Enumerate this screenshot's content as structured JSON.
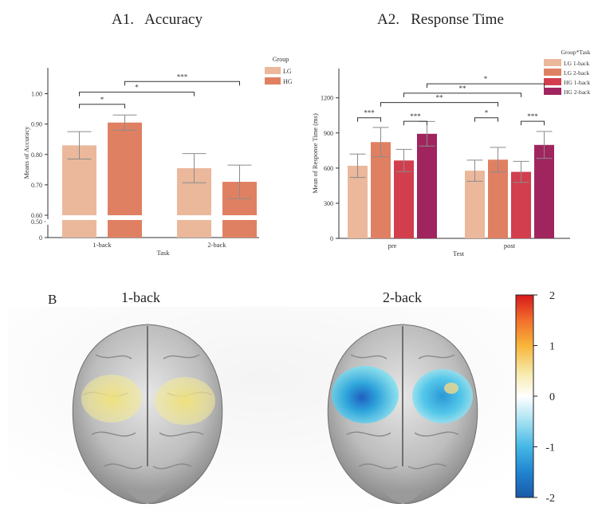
{
  "panel_a1": {
    "title": "A1.   Accuracy",
    "chart_data": {
      "type": "bar",
      "title": "A1.   Accuracy",
      "xlabel": "Task",
      "ylabel": "Means of Accuracy",
      "categories": [
        "1-back",
        "2-back"
      ],
      "series": [
        {
          "name": "LG",
          "color": "#ebb89b",
          "values": [
            0.83,
            0.755
          ],
          "err": [
            0.045,
            0.048
          ]
        },
        {
          "name": "HG",
          "color": "#e08062",
          "values": [
            0.905,
            0.71
          ],
          "err": [
            0.025,
            0.055
          ]
        }
      ],
      "yticks": [
        "0",
        "0.50",
        "0.60",
        "0.70",
        "0.80",
        "0.90",
        "1.00"
      ],
      "ylim": [
        0,
        1.08
      ],
      "legend_title": "Group",
      "legend_position": "top-right",
      "significance": [
        {
          "label": "*",
          "from": "1-back LG",
          "to": "1-back HG"
        },
        {
          "label": "*",
          "from": "1-back LG",
          "to": "2-back LG"
        },
        {
          "label": "***",
          "from": "1-back HG",
          "to": "2-back HG"
        }
      ]
    }
  },
  "panel_a2": {
    "title": "A2.   Response Time",
    "chart_data": {
      "type": "bar",
      "title": "A2.   Response Time",
      "xlabel": "Test",
      "ylabel": "Mean of Response Time (ms)",
      "categories": [
        "pre",
        "post"
      ],
      "series": [
        {
          "name": "LG 1-back",
          "color": "#ebb89b",
          "values": [
            620,
            578
          ],
          "err": [
            100,
            90
          ]
        },
        {
          "name": "LG 2-back",
          "color": "#e08062",
          "values": [
            822,
            672
          ],
          "err": [
            125,
            105
          ]
        },
        {
          "name": "HG 1-back",
          "color": "#d23e4e",
          "values": [
            665,
            568
          ],
          "err": [
            95,
            90
          ]
        },
        {
          "name": "HG 2-back",
          "color": "#a0255f",
          "values": [
            893,
            798
          ],
          "err": [
            105,
            115
          ]
        }
      ],
      "yticks": [
        "0",
        "300",
        "600",
        "900",
        "1200"
      ],
      "ylim": [
        0,
        1450
      ],
      "legend_title": "Group*Task",
      "legend_position": "top-right",
      "significance": [
        {
          "label": "***",
          "from": "pre LG 1-back",
          "to": "pre LG 2-back"
        },
        {
          "label": "***",
          "from": "pre HG 1-back",
          "to": "pre HG 2-back"
        },
        {
          "label": "*",
          "from": "post LG 1-back",
          "to": "post LG 2-back"
        },
        {
          "label": "***",
          "from": "post HG 1-back",
          "to": "post HG 2-back"
        },
        {
          "label": "**",
          "from": "pre LG 2-back",
          "to": "post LG 2-back"
        },
        {
          "label": "**",
          "from": "pre HG 1-back",
          "to": "post HG 1-back"
        },
        {
          "label": "*",
          "from": "pre HG 2-back",
          "to": "post HG 2-back"
        }
      ]
    }
  },
  "panel_b": {
    "label": "B",
    "brain_titles": [
      "1-back",
      "2-back"
    ],
    "colorbar": {
      "ticks": [
        "2",
        "1",
        "0",
        "-1",
        "-2"
      ],
      "max": 2,
      "min": -2
    }
  }
}
